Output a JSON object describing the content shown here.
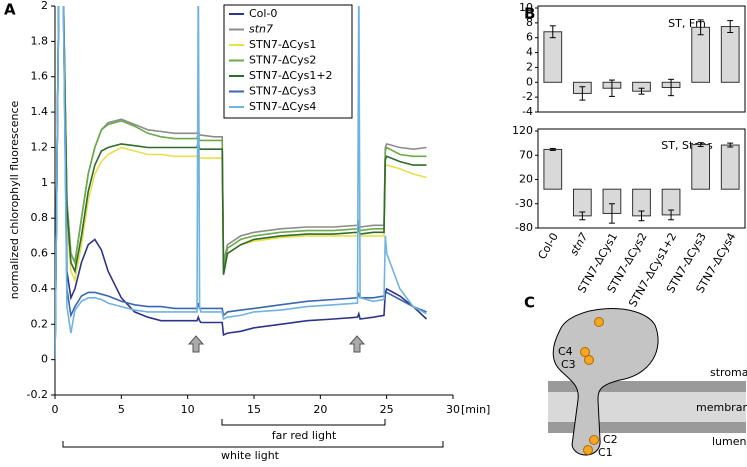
{
  "chart_data": [
    {
      "type": "line",
      "panel": "A",
      "ylabel": "normalized chlorophyll fluorescence",
      "xlabel": "[min]",
      "xlim": [
        0,
        30
      ],
      "xticks": [
        0,
        5,
        10,
        15,
        20,
        25,
        30
      ],
      "ylim": [
        -0.2,
        2
      ],
      "yticks": [
        -0.2,
        0,
        0.2,
        0.4,
        0.6,
        0.8,
        1,
        1.2,
        1.4,
        1.6,
        1.8,
        2
      ],
      "annotations": [
        "far red light",
        "white light"
      ],
      "x": [
        0,
        0.3,
        0.6,
        0.9,
        1.2,
        1.5,
        2,
        2.5,
        3,
        3.5,
        4,
        5,
        6,
        7,
        8,
        9,
        10,
        10.7,
        10.8,
        10.9,
        11,
        12,
        12.6,
        12.7,
        13,
        14,
        15,
        17,
        19,
        21,
        22.8,
        22.9,
        23,
        24,
        24.8,
        24.9,
        25,
        26,
        27,
        28
      ],
      "series": [
        {
          "name": "Col-0",
          "color": "#2e3588",
          "values": [
            0,
            2.2,
            2.2,
            0.5,
            0.35,
            0.4,
            0.55,
            0.65,
            0.68,
            0.62,
            0.5,
            0.35,
            0.27,
            0.24,
            0.22,
            0.22,
            0.22,
            0.22,
            0.24,
            0.22,
            0.21,
            0.21,
            0.21,
            0.14,
            0.15,
            0.16,
            0.18,
            0.2,
            0.22,
            0.23,
            0.24,
            0.26,
            0.23,
            0.24,
            0.25,
            0.38,
            0.4,
            0.36,
            0.3,
            0.23
          ]
        },
        {
          "name": "stn7",
          "color": "#8c8c8c",
          "values": [
            0,
            2.2,
            2.2,
            0.9,
            0.6,
            0.55,
            0.8,
            1.05,
            1.2,
            1.3,
            1.34,
            1.36,
            1.33,
            1.3,
            1.29,
            1.28,
            1.28,
            1.28,
            1.3,
            1.27,
            1.27,
            1.26,
            1.26,
            0.55,
            0.65,
            0.7,
            0.72,
            0.74,
            0.75,
            0.75,
            0.76,
            0.78,
            0.75,
            0.76,
            0.76,
            1.2,
            1.22,
            1.2,
            1.19,
            1.2
          ]
        },
        {
          "name": "STN7-ΔCys1",
          "color": "#e8e04a",
          "values": [
            0,
            2.2,
            2.2,
            0.8,
            0.5,
            0.45,
            0.65,
            0.9,
            1.05,
            1.12,
            1.16,
            1.2,
            1.18,
            1.16,
            1.16,
            1.15,
            1.15,
            1.15,
            1.17,
            1.14,
            1.14,
            1.14,
            1.14,
            0.5,
            0.6,
            0.65,
            0.67,
            0.69,
            0.7,
            0.7,
            0.7,
            0.72,
            0.7,
            0.7,
            0.7,
            1.1,
            1.1,
            1.08,
            1.05,
            1.03
          ]
        },
        {
          "name": "STN7-ΔCys2",
          "color": "#6aaa48",
          "values": [
            0,
            2.2,
            2.2,
            0.9,
            0.6,
            0.55,
            0.8,
            1.05,
            1.2,
            1.3,
            1.33,
            1.35,
            1.32,
            1.28,
            1.26,
            1.25,
            1.25,
            1.25,
            1.28,
            1.24,
            1.24,
            1.24,
            1.24,
            0.52,
            0.63,
            0.68,
            0.7,
            0.72,
            0.73,
            0.73,
            0.74,
            0.76,
            0.73,
            0.74,
            0.74,
            1.18,
            1.2,
            1.16,
            1.15,
            1.15
          ]
        },
        {
          "name": "STN7-ΔCys1+2",
          "color": "#2f6b2a",
          "values": [
            0,
            2.2,
            2.2,
            0.85,
            0.55,
            0.5,
            0.7,
            0.95,
            1.1,
            1.18,
            1.2,
            1.22,
            1.21,
            1.2,
            1.2,
            1.2,
            1.2,
            1.2,
            1.23,
            1.19,
            1.19,
            1.19,
            1.19,
            0.48,
            0.6,
            0.65,
            0.68,
            0.7,
            0.71,
            0.71,
            0.72,
            0.74,
            0.71,
            0.72,
            0.72,
            1.13,
            1.15,
            1.12,
            1.1,
            1.1
          ]
        },
        {
          "name": "STN7-ΔCys3",
          "color": "#3a67b0",
          "values": [
            0,
            2.2,
            2.2,
            0.4,
            0.25,
            0.3,
            0.36,
            0.38,
            0.38,
            0.37,
            0.36,
            0.33,
            0.31,
            0.3,
            0.3,
            0.29,
            0.29,
            0.29,
            0.32,
            0.29,
            0.29,
            0.29,
            0.29,
            0.25,
            0.27,
            0.28,
            0.29,
            0.31,
            0.33,
            0.34,
            0.35,
            0.37,
            0.35,
            0.35,
            0.36,
            0.37,
            0.38,
            0.34,
            0.3,
            0.27
          ]
        },
        {
          "name": "STN7-ΔCys4",
          "color": "#6fb3e0",
          "values": [
            0,
            2.2,
            2.2,
            0.3,
            0.15,
            0.28,
            0.33,
            0.35,
            0.35,
            0.34,
            0.32,
            0.3,
            0.28,
            0.27,
            0.27,
            0.27,
            0.27,
            0.27,
            2.2,
            0.3,
            0.27,
            0.27,
            0.27,
            0.23,
            0.24,
            0.25,
            0.27,
            0.28,
            0.3,
            0.31,
            0.32,
            2.2,
            0.35,
            0.33,
            0.34,
            0.7,
            0.6,
            0.4,
            0.3,
            0.26
          ]
        }
      ]
    },
    {
      "type": "bar",
      "panel": "B",
      "title": "ST, Fm",
      "color": "#d9d9d9",
      "ylim": [
        -4,
        10
      ],
      "yticks": [
        -4,
        -2,
        0,
        2,
        4,
        6,
        8,
        10
      ],
      "values": [
        6.8,
        -1.5,
        -0.8,
        -1.2,
        -0.7,
        7.4,
        7.5
      ],
      "errors": [
        0.8,
        0.9,
        1.1,
        0.4,
        1.1,
        1.0,
        0.8
      ]
    },
    {
      "type": "bar",
      "title": "ST, Steps",
      "color": "#d9d9d9",
      "ylim": [
        -80,
        120
      ],
      "yticks": [
        -80,
        -30,
        20,
        70,
        120
      ],
      "categories": [
        "Col-0",
        "stn7",
        "STN7-ΔCys1",
        "STN7-ΔCys2",
        "STN7-ΔCys1+2",
        "STN7-ΔCys3",
        "STN7-ΔCys4"
      ],
      "values": [
        82,
        -55,
        -50,
        -55,
        -53,
        92,
        91
      ],
      "errors": [
        2,
        8,
        20,
        10,
        10,
        4,
        4
      ]
    }
  ],
  "diagram": {
    "panel": "C",
    "labels": [
      "C4",
      "C3",
      "C2",
      "C1"
    ],
    "layers": [
      "stroma",
      "membrane",
      "lumen"
    ]
  }
}
